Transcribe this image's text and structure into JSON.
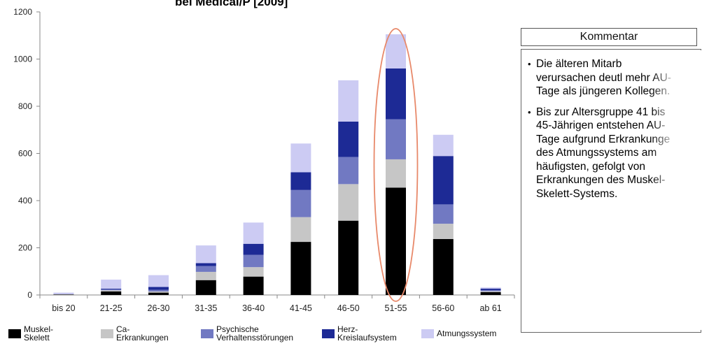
{
  "chart_data": {
    "type": "bar",
    "stacked": true,
    "title": "bei Medical/P [2009]",
    "categories": [
      "bis 20",
      "21-25",
      "26-30",
      "31-35",
      "36-40",
      "41-45",
      "46-50",
      "51-55",
      "56-60",
      "ab 61"
    ],
    "ylim": [
      0,
      1200
    ],
    "yticks": [
      0,
      200,
      400,
      600,
      800,
      1000,
      1200
    ],
    "grid": false,
    "legend_position": "bottom",
    "highlight_category": "51-55",
    "series": [
      {
        "name": "Muskel-Skelett",
        "color": "#000000",
        "values": [
          2,
          15,
          10,
          63,
          78,
          225,
          315,
          455,
          237,
          12
        ]
      },
      {
        "name": "Ca-Erkrankungen",
        "color": "#c6c6c6",
        "values": [
          1,
          5,
          5,
          35,
          40,
          105,
          155,
          120,
          65,
          4
        ]
      },
      {
        "name": "Psychische Verhaltensstörungen",
        "color": "#7179c2",
        "values": [
          1,
          4,
          7,
          25,
          52,
          115,
          115,
          170,
          82,
          5
        ]
      },
      {
        "name": "Herz-Kreislaufsystem",
        "color": "#1d2a95",
        "values": [
          0,
          3,
          12,
          12,
          47,
          75,
          150,
          215,
          205,
          6
        ]
      },
      {
        "name": "Atmungssystem",
        "color": "#cccbf3",
        "values": [
          6,
          38,
          50,
          75,
          90,
          122,
          175,
          145,
          90,
          5
        ]
      }
    ]
  },
  "comment": {
    "header": "Kommentar",
    "bullets": [
      "Die älteren Mitarb verursachen deutl mehr AU-Tage als jüngeren Kollegen.",
      "Bis zur Altersgruppe 41 bis 45-Jährigen entstehen AU-Tage aufgrund Erkrankunge des Atmungssystems am häufigsten, gefolgt von Erkrankungen des Muskel-Skelett-Systems."
    ]
  },
  "legend": [
    {
      "label": "Muskel-Skelett",
      "color": "#000000"
    },
    {
      "label": "Ca-Erkrankungen",
      "color": "#c6c6c6"
    },
    {
      "label": "Psychische\nVerhaltensstörungen",
      "color": "#7179c2"
    },
    {
      "label": "Herz-\nKreislaufsystem",
      "color": "#1d2a95"
    },
    {
      "label": "Atmungssystem",
      "color": "#cccbf3"
    }
  ]
}
